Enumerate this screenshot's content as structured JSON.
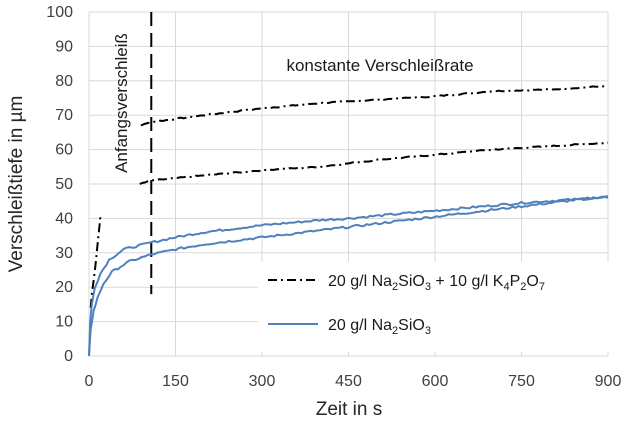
{
  "chart_data": {
    "type": "line",
    "xlabel": "Zeit in s",
    "ylabel": "Verschleißtiefe in µm",
    "xlim": [
      0,
      900
    ],
    "ylim": [
      0,
      100
    ],
    "xticks": [
      "0",
      "150",
      "300",
      "450",
      "600",
      "750",
      "900"
    ],
    "yticks": [
      "0",
      "10",
      "20",
      "30",
      "40",
      "50",
      "60",
      "70",
      "80",
      "90",
      "100"
    ],
    "grid": true,
    "legend_placement": "lower-right",
    "annotations": {
      "initial_wear": "Anfangsverschleiß",
      "constant_rate": "konstante Verschleißrate",
      "boundary_x": 108
    },
    "series": [
      {
        "name": "20 g/l Na2SiO3 + 10 g/l K4P2O7",
        "style": "dash-dot",
        "color": "#000000",
        "segments": [
          [
            [
              3,
              14
            ],
            [
              5,
              18
            ],
            [
              8,
              22
            ],
            [
              11,
              26
            ],
            [
              14,
              31
            ],
            [
              17,
              36
            ],
            [
              20,
              41
            ]
          ],
          [
            [
              90,
              67
            ],
            [
              108,
              68
            ],
            [
              200,
              70
            ],
            [
              300,
              72
            ],
            [
              400,
              73.5
            ],
            [
              500,
              74.5
            ],
            [
              600,
              75.5
            ],
            [
              700,
              77
            ],
            [
              800,
              77.5
            ],
            [
              900,
              78.5
            ]
          ],
          [
            [
              88,
              50
            ],
            [
              108,
              51
            ],
            [
              200,
              52.5
            ],
            [
              300,
              54
            ],
            [
              400,
              55
            ],
            [
              500,
              57
            ],
            [
              600,
              58.5
            ],
            [
              700,
              60
            ],
            [
              800,
              61
            ],
            [
              900,
              62
            ]
          ]
        ]
      },
      {
        "name": "20 g/l Na2SiO3",
        "style": "solid",
        "color": "#4f81bd",
        "segments": [
          [
            [
              0,
              0
            ],
            [
              2,
              10
            ],
            [
              5,
              15
            ],
            [
              10,
              20
            ],
            [
              20,
              24
            ],
            [
              35,
              28
            ],
            [
              60,
              31
            ],
            [
              108,
              33
            ],
            [
              150,
              34.5
            ],
            [
              200,
              36
            ],
            [
              300,
              38
            ],
            [
              400,
              39.5
            ],
            [
              450,
              40
            ],
            [
              550,
              41.5
            ],
            [
              650,
              43
            ],
            [
              750,
              44.5
            ],
            [
              820,
              45.3
            ],
            [
              900,
              46
            ]
          ],
          [
            [
              0,
              0
            ],
            [
              3,
              8
            ],
            [
              8,
              13
            ],
            [
              15,
              17
            ],
            [
              25,
              21
            ],
            [
              40,
              24.5
            ],
            [
              70,
              27.5
            ],
            [
              108,
              29.5
            ],
            [
              150,
              31
            ],
            [
              200,
              32.5
            ],
            [
              300,
              34.5
            ],
            [
              400,
              36.5
            ],
            [
              450,
              37.5
            ],
            [
              550,
              39.5
            ],
            [
              650,
              41.5
            ],
            [
              750,
              43.5
            ],
            [
              850,
              45.5
            ],
            [
              900,
              46.5
            ]
          ]
        ]
      }
    ]
  },
  "legend": {
    "items": [
      {
        "style": "dash-dot",
        "parts": [
          {
            "t": "20 g/l  Na"
          },
          {
            "t": "2",
            "sub": true
          },
          {
            "t": "SiO"
          },
          {
            "t": "3",
            "sub": true
          },
          {
            "t": " + 10 g/l K"
          },
          {
            "t": "4",
            "sub": true
          },
          {
            "t": "P"
          },
          {
            "t": "2",
            "sub": true
          },
          {
            "t": "O"
          },
          {
            "t": "7",
            "sub": true
          }
        ]
      },
      {
        "style": "solid",
        "parts": [
          {
            "t": "20 g/l  Na"
          },
          {
            "t": "2",
            "sub": true
          },
          {
            "t": "SiO"
          },
          {
            "t": "3",
            "sub": true
          }
        ]
      }
    ]
  }
}
